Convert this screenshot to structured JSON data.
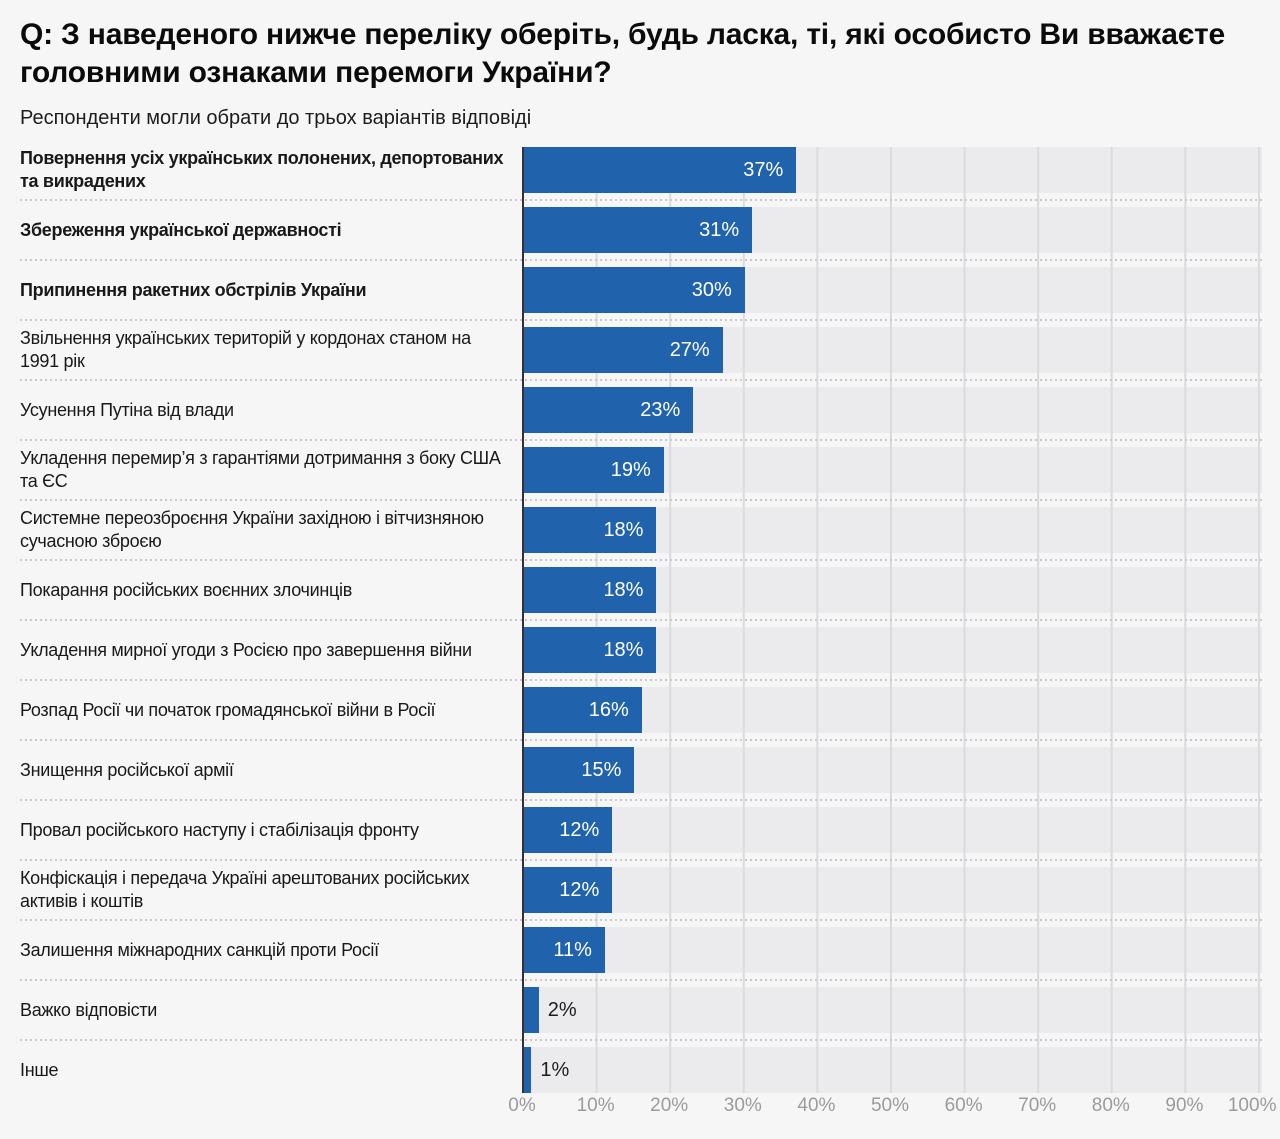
{
  "title": "Q: З наведеного нижче переліку оберіть, будь ласка, ті, які особисто Ви вважаєте головними ознаками перемоги України?",
  "subtitle": "Респонденти могли обрати до трьох варіантів відповіді",
  "chart_data": {
    "type": "bar",
    "orientation": "horizontal",
    "unit": "%",
    "xlim": [
      0,
      100
    ],
    "x_ticks": [
      "0%",
      "10%",
      "20%",
      "30%",
      "40%",
      "50%",
      "60%",
      "70%",
      "80%",
      "90%",
      "100%"
    ],
    "grid": true,
    "bar_color": "#2063ac",
    "track_color": "#ebebed",
    "value_label_inside_color": "#ffffff",
    "value_label_outside_color": "#1d1d1d",
    "items": [
      {
        "label": "Повернення усіх українських полонених, депортованих та викрадених",
        "value": 37,
        "bold": true
      },
      {
        "label": "Збереження української державності",
        "value": 31,
        "bold": true
      },
      {
        "label": "Припинення ракетних обстрілів України",
        "value": 30,
        "bold": true
      },
      {
        "label": "Звільнення українських територій у кордонах станом на 1991 рік",
        "value": 27,
        "bold": false
      },
      {
        "label": "Усунення Путіна від влади",
        "value": 23,
        "bold": false
      },
      {
        "label": "Укладення перемир’я з гарантіями дотримання з боку США та ЄС",
        "value": 19,
        "bold": false
      },
      {
        "label": "Системне переозброєння України західною і вітчизняною сучасною зброєю",
        "value": 18,
        "bold": false
      },
      {
        "label": "Покарання російських воєнних злочинців",
        "value": 18,
        "bold": false
      },
      {
        "label": "Укладення мирної угоди з Росією про завершення війни",
        "value": 18,
        "bold": false
      },
      {
        "label": "Розпад Росії чи початок громадянської війни в Росії",
        "value": 16,
        "bold": false
      },
      {
        "label": "Знищення російської армії",
        "value": 15,
        "bold": false
      },
      {
        "label": "Провал російського наступу і стабілізація фронту",
        "value": 12,
        "bold": false
      },
      {
        "label": "Конфіскація і передача Україні арештованих російських активів і коштів",
        "value": 12,
        "bold": false
      },
      {
        "label": "Залишення міжнародних санкцій проти Росії",
        "value": 11,
        "bold": false
      },
      {
        "label": "Важко відповісти",
        "value": 2,
        "bold": false
      },
      {
        "label": "Інше",
        "value": 1,
        "bold": false
      }
    ]
  }
}
